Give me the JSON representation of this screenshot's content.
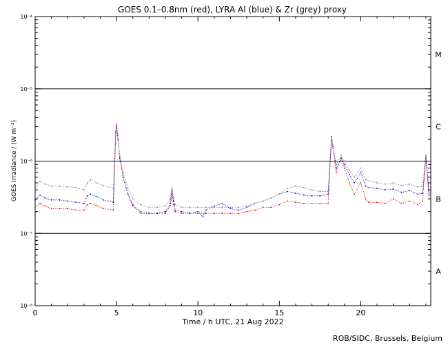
{
  "chart_data": {
    "type": "line",
    "title": "GOES 0.1–0.8nm (red), LYRA Al (blue) & Zr (grey) proxy",
    "xlabel": "Time / h UTC, 21 Aug 2022",
    "ylabel": "GOES Irradiance / (W m⁻²)",
    "xlim": [
      0,
      24.3
    ],
    "ylim": [
      1e-08,
      0.0001
    ],
    "yscale": "log",
    "x_ticks": [
      {
        "value": 0,
        "label": "0"
      },
      {
        "value": 5,
        "label": "5"
      },
      {
        "value": 10,
        "label": "10"
      },
      {
        "value": 15,
        "label": "15"
      },
      {
        "value": 20,
        "label": "20"
      }
    ],
    "y_ticks": [
      {
        "exp": -8,
        "label": "10⁻⁸"
      },
      {
        "exp": -7,
        "label": "10⁻⁷"
      },
      {
        "exp": -6,
        "label": "10⁻⁶"
      },
      {
        "exp": -5,
        "label": "10⁻⁵"
      },
      {
        "exp": -4,
        "label": "10⁻⁴"
      }
    ],
    "flare_class_lines": [
      1e-07,
      1e-06,
      1e-05
    ],
    "flare_classes": [
      {
        "label": "A",
        "value": 3e-08
      },
      {
        "label": "B",
        "value": 3e-07
      },
      {
        "label": "C",
        "value": 3e-06
      },
      {
        "label": "M",
        "value": 3e-05
      }
    ],
    "series": [
      {
        "color": "#e00000",
        "x": [
          0,
          0.3,
          0.6,
          1.0,
          1.5,
          2.0,
          2.5,
          3.0,
          3.2,
          3.4,
          3.8,
          4.2,
          4.8,
          4.95,
          5.0,
          5.1,
          5.2,
          5.4,
          5.7,
          6.0,
          6.5,
          7.0,
          7.5,
          8.0,
          8.3,
          8.4,
          8.5,
          8.6,
          9.0,
          9.5,
          10.0,
          10.5,
          11.0,
          11.5,
          12.0,
          12.5,
          13.0,
          13.5,
          14.0,
          14.5,
          15.0,
          15.5,
          16.0,
          16.5,
          17.0,
          17.5,
          18.0,
          18.2,
          18.3,
          18.5,
          18.8,
          19.0,
          19.3,
          19.6,
          20.0,
          20.3,
          20.5,
          21.0,
          21.5,
          22.0,
          22.5,
          23.0,
          23.5,
          23.8,
          24.0,
          24.2
        ],
        "values": [
          2.3e-07,
          2.6e-07,
          2.4e-07,
          2.2e-07,
          2.2e-07,
          2.2e-07,
          2.1e-07,
          2.1e-07,
          2.5e-07,
          2.6e-07,
          2.4e-07,
          2.2e-07,
          2.1e-07,
          2.5e-06,
          3.2e-06,
          2e-06,
          1.1e-06,
          6e-07,
          3.5e-07,
          2.5e-07,
          2e-07,
          1.9e-07,
          1.9e-07,
          1.9e-07,
          2.4e-07,
          3.5e-07,
          2.5e-07,
          2e-07,
          1.9e-07,
          1.9e-07,
          1.9e-07,
          1.9e-07,
          1.9e-07,
          1.9e-07,
          1.9e-07,
          1.9e-07,
          2e-07,
          2.1e-07,
          2.3e-07,
          2.3e-07,
          2.5e-07,
          2.8e-07,
          2.7e-07,
          2.6e-07,
          2.6e-07,
          2.6e-07,
          2.6e-07,
          2.2e-06,
          1.5e-06,
          7e-07,
          1.1e-06,
          8e-07,
          5e-07,
          3.5e-07,
          5e-07,
          3e-07,
          2.7e-07,
          2.7e-07,
          2.6e-07,
          3e-07,
          2.6e-07,
          2.8e-07,
          2.5e-07,
          2.8e-07,
          1.2e-06,
          3e-07
        ]
      },
      {
        "color": "#0000cc",
        "x": [
          0,
          0.3,
          0.6,
          1.0,
          1.5,
          2.0,
          2.5,
          3.0,
          3.2,
          3.4,
          3.8,
          4.2,
          4.8,
          4.95,
          5.0,
          5.1,
          5.2,
          5.4,
          5.7,
          6.0,
          6.5,
          7.0,
          7.5,
          8.0,
          8.3,
          8.4,
          8.5,
          8.6,
          9.0,
          9.5,
          10.0,
          10.3,
          10.5,
          11.0,
          11.5,
          12.0,
          12.5,
          13.0,
          13.5,
          14.0,
          14.5,
          15.0,
          15.5,
          16.0,
          16.5,
          17.0,
          17.5,
          18.0,
          18.2,
          18.3,
          18.5,
          18.8,
          19.0,
          19.3,
          19.6,
          20.0,
          20.3,
          20.5,
          21.0,
          21.5,
          22.0,
          22.5,
          23.0,
          23.5,
          23.8,
          24.0,
          24.2
        ],
        "values": [
          2.9e-07,
          3.4e-07,
          3.1e-07,
          2.9e-07,
          2.9e-07,
          2.8e-07,
          2.7e-07,
          2.6e-07,
          3.3e-07,
          3.5e-07,
          3.2e-07,
          2.9e-07,
          2.7e-07,
          2.6e-06,
          3e-06,
          1.9e-06,
          1.1e-06,
          6e-07,
          3.5e-07,
          2.4e-07,
          1.9e-07,
          1.9e-07,
          1.9e-07,
          2e-07,
          2.6e-07,
          4e-07,
          2.8e-07,
          2.1e-07,
          2e-07,
          1.9e-07,
          2e-07,
          1.7e-07,
          2.1e-07,
          2.4e-07,
          2.6e-07,
          2.2e-07,
          2.1e-07,
          2.3e-07,
          2.6e-07,
          2.8e-07,
          3.1e-07,
          3.5e-07,
          3.8e-07,
          3.6e-07,
          3.4e-07,
          3.3e-07,
          3.3e-07,
          3.5e-07,
          2e-06,
          1.6e-06,
          8e-07,
          1.1e-06,
          9e-07,
          6.5e-07,
          5e-07,
          7e-07,
          4.5e-07,
          4.3e-07,
          4.2e-07,
          4e-07,
          4.1e-07,
          3.7e-07,
          3.9e-07,
          3.5e-07,
          3.6e-07,
          1.1e-06,
          3.4e-07
        ]
      },
      {
        "color": "#808080",
        "x": [
          0,
          0.3,
          0.6,
          1.0,
          1.5,
          2.0,
          2.5,
          3.0,
          3.2,
          3.4,
          3.8,
          4.2,
          4.8,
          4.95,
          5.0,
          5.1,
          5.2,
          5.4,
          5.7,
          6.0,
          6.5,
          7.0,
          7.5,
          8.0,
          8.3,
          8.4,
          8.5,
          8.6,
          9.0,
          9.5,
          10.0,
          10.5,
          11.0,
          11.5,
          12.0,
          12.5,
          13.0,
          13.5,
          14.0,
          14.5,
          15.0,
          15.5,
          16.0,
          16.5,
          17.0,
          17.5,
          18.0,
          18.2,
          18.3,
          18.5,
          18.8,
          19.0,
          19.3,
          19.6,
          20.0,
          20.3,
          20.5,
          21.0,
          21.5,
          22.0,
          22.5,
          23.0,
          23.5,
          23.8,
          24.0,
          24.2
        ],
        "values": [
          4e-07,
          5.3e-07,
          4.8e-07,
          4.5e-07,
          4.5e-07,
          4.4e-07,
          4.3e-07,
          4e-07,
          5e-07,
          5.5e-07,
          5e-07,
          4.6e-07,
          4.2e-07,
          2.6e-06,
          2.9e-06,
          1.9e-06,
          1.2e-06,
          7e-07,
          4.2e-07,
          3e-07,
          2.5e-07,
          2.3e-07,
          2.3e-07,
          2.4e-07,
          3e-07,
          4.3e-07,
          3.1e-07,
          2.5e-07,
          2.3e-07,
          2.3e-07,
          2.3e-07,
          2.3e-07,
          2.3e-07,
          2.3e-07,
          2.3e-07,
          2.3e-07,
          2.4e-07,
          2.6e-07,
          2.8e-07,
          3.1e-07,
          3.5e-07,
          4.2e-07,
          4.5e-07,
          4.3e-07,
          4e-07,
          3.8e-07,
          3.8e-07,
          2e-06,
          1.5e-06,
          9e-07,
          1.2e-06,
          1e-06,
          7.5e-07,
          6e-07,
          8e-07,
          5.5e-07,
          5.3e-07,
          5e-07,
          4.8e-07,
          5e-07,
          4.6e-07,
          4.8e-07,
          4.4e-07,
          4.5e-07,
          1.2e-06,
          4e-07
        ]
      }
    ]
  },
  "credit": "ROB/SIDC, Brussels, Belgium"
}
